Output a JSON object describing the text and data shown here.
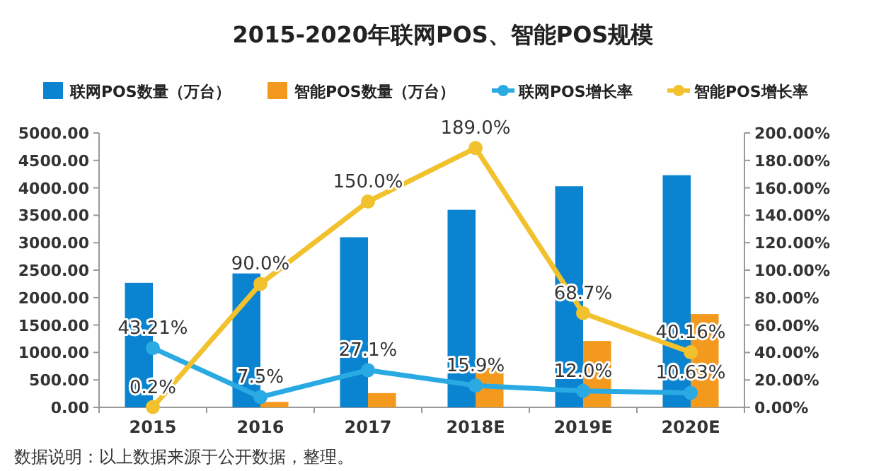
{
  "chart_data": {
    "type": "bar",
    "title": "2015-2020年联网POS、智能POS规模",
    "categories": [
      "2015",
      "2016",
      "2017",
      "2018E",
      "2019E",
      "2020E"
    ],
    "series": [
      {
        "name": "联网POS数量（万台）",
        "color": "#0a84d0",
        "values": [
          2270,
          2440,
          3100,
          3600,
          4030,
          4230
        ]
      },
      {
        "name": "智能POS数量（万台）",
        "color": "#f39a1e",
        "values": [
          0,
          100,
          260,
          720,
          1210,
          1700
        ]
      },
      {
        "name": "联网POS增长率",
        "type": "line",
        "axis": "y2",
        "color": "#2aaae2",
        "values": [
          43.21,
          7.5,
          27.1,
          15.9,
          12.0,
          10.63
        ],
        "value_labels": [
          "43.21%",
          "7.5%",
          "27.1%",
          "15.9%",
          "12.0%",
          "10.63%"
        ]
      },
      {
        "name": "智能POS增长率",
        "type": "line",
        "axis": "y2",
        "color": "#f2c12e",
        "values": [
          0.2,
          90.0,
          150.0,
          189.0,
          68.7,
          40.16
        ],
        "value_labels": [
          "0.2%",
          "90.0%",
          "150.0%",
          "189.0%",
          "68.7%",
          "40.16%"
        ]
      }
    ],
    "ylim": [
      0,
      5000
    ],
    "yticks": [
      {
        "value": 0,
        "label": "0.00"
      },
      {
        "value": 500,
        "label": "500.00"
      },
      {
        "value": 1000,
        "label": "1000.00"
      },
      {
        "value": 1500,
        "label": "1500.00"
      },
      {
        "value": 2000,
        "label": "2000.00"
      },
      {
        "value": 2500,
        "label": "2500.00"
      },
      {
        "value": 3000,
        "label": "3000.00"
      },
      {
        "value": 3500,
        "label": "3500.00"
      },
      {
        "value": 4000,
        "label": "4000.00"
      },
      {
        "value": 4500,
        "label": "4500.00"
      },
      {
        "value": 5000,
        "label": "5000.00"
      }
    ],
    "y2lim": [
      0,
      200
    ],
    "y2ticks": [
      {
        "value": 0,
        "label": "0.00%"
      },
      {
        "value": 20,
        "label": "20.00%"
      },
      {
        "value": 40,
        "label": "40.00%"
      },
      {
        "value": 60,
        "label": "60.00%"
      },
      {
        "value": 80,
        "label": "80.00%"
      },
      {
        "value": 100,
        "label": "100.00%"
      },
      {
        "value": 120,
        "label": "120.00%"
      },
      {
        "value": 140,
        "label": "140.00%"
      },
      {
        "value": 160,
        "label": "160.00%"
      },
      {
        "value": 180,
        "label": "180.00%"
      },
      {
        "value": 200,
        "label": "200.00%"
      }
    ],
    "marker": "circle",
    "legend": "top",
    "grid": false,
    "annotations": [
      "数据说明：以上数据来源于公开数据，整理。"
    ]
  }
}
